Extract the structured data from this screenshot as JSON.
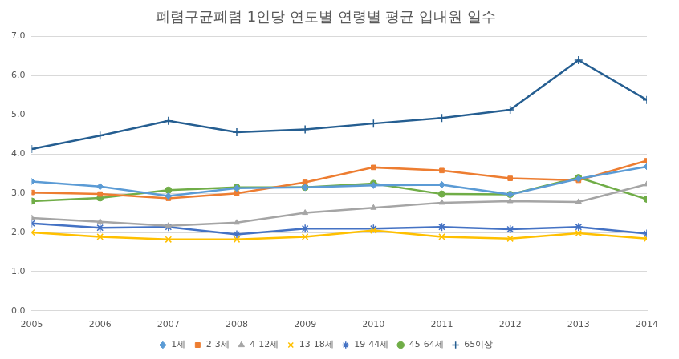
{
  "chart_data": {
    "type": "line",
    "title": "폐렴구균폐렴 1인당 연도별 연령별 평균 입내원 일수",
    "categories": [
      "2005",
      "2006",
      "2007",
      "2008",
      "2009",
      "2010",
      "2011",
      "2012",
      "2013",
      "2014"
    ],
    "series": [
      {
        "name": "1세",
        "color": "#5b9bd5",
        "marker": "diamond",
        "values": [
          3.3,
          3.17,
          2.93,
          3.13,
          3.15,
          3.2,
          3.22,
          2.97,
          3.37,
          3.68
        ]
      },
      {
        "name": "2-3세",
        "color": "#ed7d31",
        "marker": "square",
        "values": [
          3.02,
          2.98,
          2.87,
          3.0,
          3.28,
          3.66,
          3.58,
          3.38,
          3.33,
          3.83
        ]
      },
      {
        "name": "4-12세",
        "color": "#a5a5a5",
        "marker": "triangle",
        "values": [
          2.37,
          2.27,
          2.17,
          2.25,
          2.5,
          2.63,
          2.76,
          2.8,
          2.78,
          3.23
        ]
      },
      {
        "name": "13-18세",
        "color": "#ffc000",
        "marker": "x",
        "values": [
          2.0,
          1.89,
          1.82,
          1.82,
          1.89,
          2.05,
          1.89,
          1.84,
          1.98,
          1.84
        ]
      },
      {
        "name": "19-44세",
        "color": "#4472c4",
        "marker": "star",
        "values": [
          2.23,
          2.12,
          2.14,
          1.95,
          2.1,
          2.1,
          2.14,
          2.08,
          2.14,
          1.97
        ]
      },
      {
        "name": "45-64세",
        "color": "#70ad47",
        "marker": "circle",
        "values": [
          2.8,
          2.88,
          3.08,
          3.15,
          3.15,
          3.25,
          2.98,
          2.97,
          3.4,
          2.85
        ]
      },
      {
        "name": "65이상",
        "color": "#255e91",
        "marker": "plus",
        "values": [
          4.13,
          4.47,
          4.85,
          4.56,
          4.63,
          4.78,
          4.92,
          5.13,
          6.4,
          5.38
        ]
      }
    ],
    "ylim": [
      0,
      7
    ],
    "yticks": [
      {
        "value": 0,
        "label": "0.0"
      },
      {
        "value": 1,
        "label": "1.0"
      },
      {
        "value": 2,
        "label": "2.0"
      },
      {
        "value": 3,
        "label": "3.0"
      },
      {
        "value": 4,
        "label": "4.0"
      },
      {
        "value": 5,
        "label": "5.0"
      },
      {
        "value": 6,
        "label": "6.0"
      },
      {
        "value": 7,
        "label": "7.0"
      }
    ],
    "grid": true,
    "legend": "bottom"
  }
}
